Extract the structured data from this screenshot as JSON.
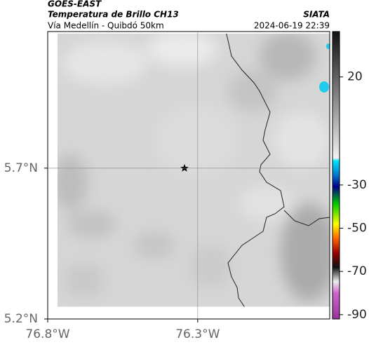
{
  "header": {
    "satellite": "GOES-EAST",
    "product": "Temperatura de Brillo CH13",
    "region": "Vía Medellín - Quibdó 50km",
    "source": "SIATA",
    "datetime": "2024-06-19 22:39"
  },
  "map": {
    "xlim": [
      -76.8,
      -75.86
    ],
    "ylim": [
      5.2,
      6.153
    ],
    "lon_ticks": [
      {
        "value": -76.8,
        "label": "76.8°W"
      },
      {
        "value": -76.3,
        "label": "76.3°W"
      }
    ],
    "lat_ticks": [
      {
        "value": 5.2,
        "label": "5.2°N"
      },
      {
        "value": 5.7,
        "label": "5.7°N"
      }
    ]
  },
  "colorbar": {
    "lim": [
      41,
      -92
    ],
    "ticks": [
      20,
      -30,
      -50,
      -70,
      -90
    ]
  }
}
